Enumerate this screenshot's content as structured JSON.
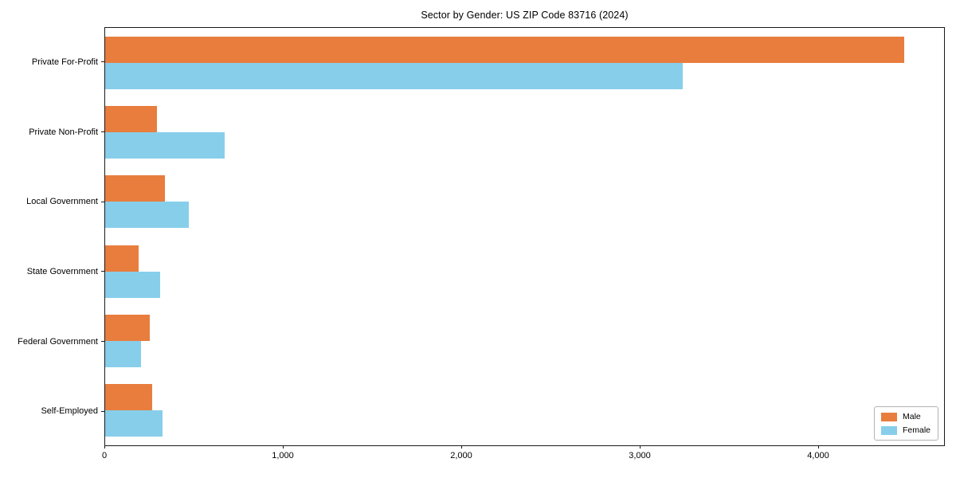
{
  "figure": {
    "background": "#ffffff"
  },
  "chart_data": {
    "type": "bar",
    "orientation": "horizontal",
    "title": "Sector by Gender: US ZIP Code 83716 (2024)",
    "categories": [
      "Private For-Profit",
      "Private Non-Profit",
      "Local Government",
      "State Government",
      "Federal Government",
      "Self-Employed"
    ],
    "series": [
      {
        "name": "Male",
        "color": "#E87D3E",
        "values": [
          4485,
          290,
          335,
          190,
          250,
          265
        ]
      },
      {
        "name": "Female",
        "color": "#87CEEB",
        "values": [
          3245,
          670,
          470,
          310,
          200,
          320
        ]
      }
    ],
    "xlabel": "",
    "ylabel": "",
    "xlim": [
      0,
      4710
    ],
    "xticks": [
      0,
      1000,
      2000,
      3000,
      4000
    ],
    "xtick_labels": [
      "0",
      "1,000",
      "2,000",
      "3,000",
      "4,000"
    ],
    "grid": false,
    "legend": {
      "position": "lower right",
      "entries": [
        "Male",
        "Female"
      ]
    },
    "axis_color": "#1a1a1a"
  }
}
